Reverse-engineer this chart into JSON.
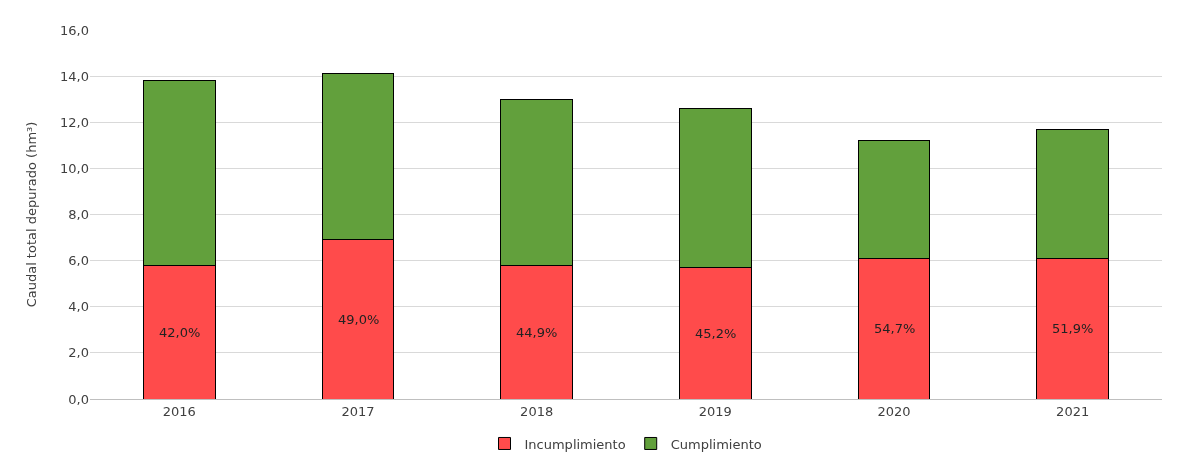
{
  "chart_data": {
    "type": "bar",
    "stacked": true,
    "ylabel": "Caudal total depurado (hm³)",
    "categories": [
      "2016",
      "2017",
      "2018",
      "2019",
      "2020",
      "2021"
    ],
    "series": [
      {
        "name": "Incumplimiento",
        "color": "#ff4b4b",
        "values": [
          5.8,
          6.9,
          5.8,
          5.7,
          6.1,
          6.1
        ]
      },
      {
        "name": "Cumplimiento",
        "color": "#62a03c",
        "values": [
          8.0,
          7.2,
          7.2,
          6.9,
          5.1,
          5.6
        ]
      }
    ],
    "ylim": [
      0,
      16
    ],
    "yticks": [
      {
        "value": 0,
        "label": "0,0"
      },
      {
        "value": 2,
        "label": "2,0"
      },
      {
        "value": 4,
        "label": "4,0"
      },
      {
        "value": 6,
        "label": "6,0"
      },
      {
        "value": 8,
        "label": "8,0"
      },
      {
        "value": 10,
        "label": "10,0"
      },
      {
        "value": 12,
        "label": "12,0"
      },
      {
        "value": 14,
        "label": "14,0"
      },
      {
        "value": 16,
        "label": "16,0"
      }
    ],
    "annotations": [
      "42,0%",
      "49,0%",
      "44,9%",
      "45,2%",
      "54,7%",
      "51,9%"
    ],
    "grid": "y",
    "legend": "bottom"
  }
}
